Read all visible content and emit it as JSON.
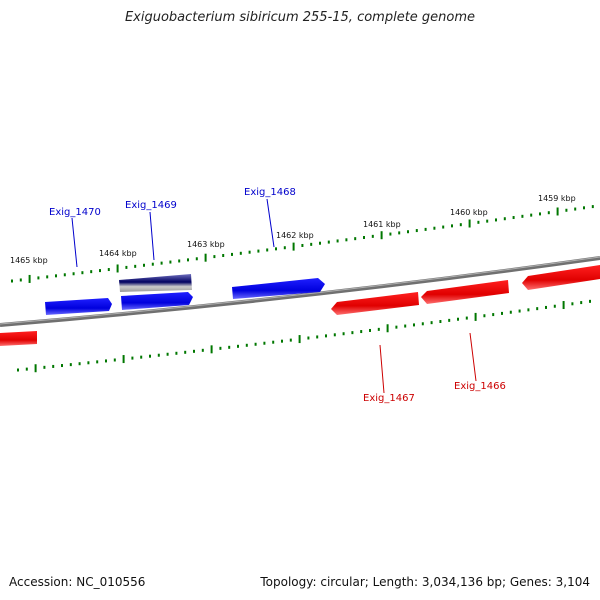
{
  "title": "Exiguobacterium sibiricum 255-15, complete genome",
  "footer": {
    "accession": "Accession: NC_010556",
    "topology": "Topology: circular; Length: 3,034,136 bp; Genes: 3,104"
  },
  "scale_ticks": [
    {
      "label": "1465 kbp"
    },
    {
      "label": "1464 kbp"
    },
    {
      "label": "1463 kbp"
    },
    {
      "label": "1462 kbp"
    },
    {
      "label": "1461 kbp"
    },
    {
      "label": "1460 kbp"
    },
    {
      "label": "1459 kbp"
    }
  ],
  "genes": [
    {
      "name": "Exig_1470",
      "strand": "forward",
      "color": "#0000ee"
    },
    {
      "name": "Exig_1469",
      "strand": "forward",
      "color": "#000080",
      "selected": true
    },
    {
      "name": "Exig_1468",
      "strand": "forward",
      "color": "#0000ee"
    },
    {
      "name": "Exig_1467",
      "strand": "reverse",
      "color": "#ee0000"
    },
    {
      "name": "Exig_1466",
      "strand": "reverse",
      "color": "#ee0000"
    }
  ],
  "colors": {
    "backbone": "#808080",
    "ticks": "#007700",
    "forward": "#0000ee",
    "reverse": "#ee0000"
  }
}
